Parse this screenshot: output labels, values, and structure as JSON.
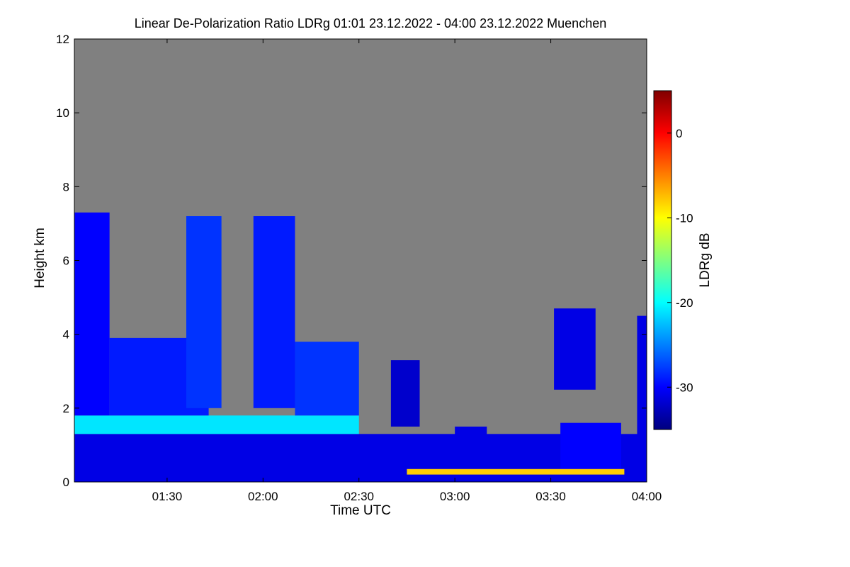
{
  "chart_data": {
    "type": "heatmap",
    "title": "Linear De-Polarization Ratio LDRg   01:01 23.12.2022 - 04:00 23.12.2022 Muenchen",
    "xlabel": "Time UTC",
    "ylabel": "Height km",
    "colorbar_label": "LDRg dB",
    "xlim_minutes": [
      61,
      240
    ],
    "ylim": [
      0,
      12
    ],
    "x_ticks": [
      {
        "label": "01:30",
        "minutes": 90
      },
      {
        "label": "02:00",
        "minutes": 120
      },
      {
        "label": "02:30",
        "minutes": 150
      },
      {
        "label": "03:00",
        "minutes": 180
      },
      {
        "label": "03:30",
        "minutes": 210
      },
      {
        "label": "04:00",
        "minutes": 240
      }
    ],
    "y_ticks": [
      {
        "label": "0",
        "value": 0
      },
      {
        "label": "2",
        "value": 2
      },
      {
        "label": "4",
        "value": 4
      },
      {
        "label": "6",
        "value": 6
      },
      {
        "label": "8",
        "value": 8
      },
      {
        "label": "10",
        "value": 10
      },
      {
        "label": "12",
        "value": 12
      }
    ],
    "colorbar_range": [
      -35,
      5
    ],
    "colorbar_ticks": [
      {
        "label": "0",
        "value": 0
      },
      {
        "label": "-10",
        "value": -10
      },
      {
        "label": "-20",
        "value": -20
      },
      {
        "label": "-30",
        "value": -30
      }
    ],
    "background_color": "#808080",
    "colormap": [
      "#00007f",
      "#0000ff",
      "#0080ff",
      "#00ffff",
      "#80ff80",
      "#ffff00",
      "#ff8000",
      "#ff0000",
      "#800000"
    ],
    "features": [
      {
        "name": "boundary-layer-base",
        "x_from": 61,
        "x_to": 240,
        "y_from": 0.0,
        "y_to": 1.3,
        "ldr": -31
      },
      {
        "name": "aerosol-layer-top",
        "x_from": 61,
        "x_to": 150,
        "y_from": 1.3,
        "y_to": 1.8,
        "ldr": -21
      },
      {
        "name": "cloud-1",
        "x_from": 61,
        "x_to": 72,
        "y_from": 1.8,
        "y_to": 7.3,
        "ldr": -30
      },
      {
        "name": "cloud-2",
        "x_from": 72,
        "x_to": 103,
        "y_from": 1.8,
        "y_to": 3.9,
        "ldr": -29
      },
      {
        "name": "cloud-3",
        "x_from": 96,
        "x_to": 107,
        "y_from": 2.0,
        "y_to": 7.2,
        "ldr": -28
      },
      {
        "name": "cloud-4",
        "x_from": 117,
        "x_to": 130,
        "y_from": 2.0,
        "y_to": 7.2,
        "ldr": -29
      },
      {
        "name": "cloud-5",
        "x_from": 130,
        "x_to": 150,
        "y_from": 1.8,
        "y_to": 3.8,
        "ldr": -28
      },
      {
        "name": "cloud-6",
        "x_from": 160,
        "x_to": 169,
        "y_from": 1.5,
        "y_to": 3.3,
        "ldr": -32
      },
      {
        "name": "cloud-7",
        "x_from": 211,
        "x_to": 224,
        "y_from": 2.5,
        "y_to": 4.7,
        "ldr": -31
      },
      {
        "name": "cloud-8",
        "x_from": 237,
        "x_to": 240,
        "y_from": 0.2,
        "y_to": 4.5,
        "ldr": -31
      },
      {
        "name": "low-cloud-1",
        "x_from": 180,
        "x_to": 190,
        "y_from": 0.1,
        "y_to": 1.5,
        "ldr": -31
      },
      {
        "name": "low-cloud-2",
        "x_from": 213,
        "x_to": 232,
        "y_from": 0.3,
        "y_to": 1.6,
        "ldr": -30
      },
      {
        "name": "rain-streak",
        "x_from": 165,
        "x_to": 233,
        "y_from": 0.2,
        "y_to": 0.35,
        "ldr": -8
      }
    ]
  }
}
